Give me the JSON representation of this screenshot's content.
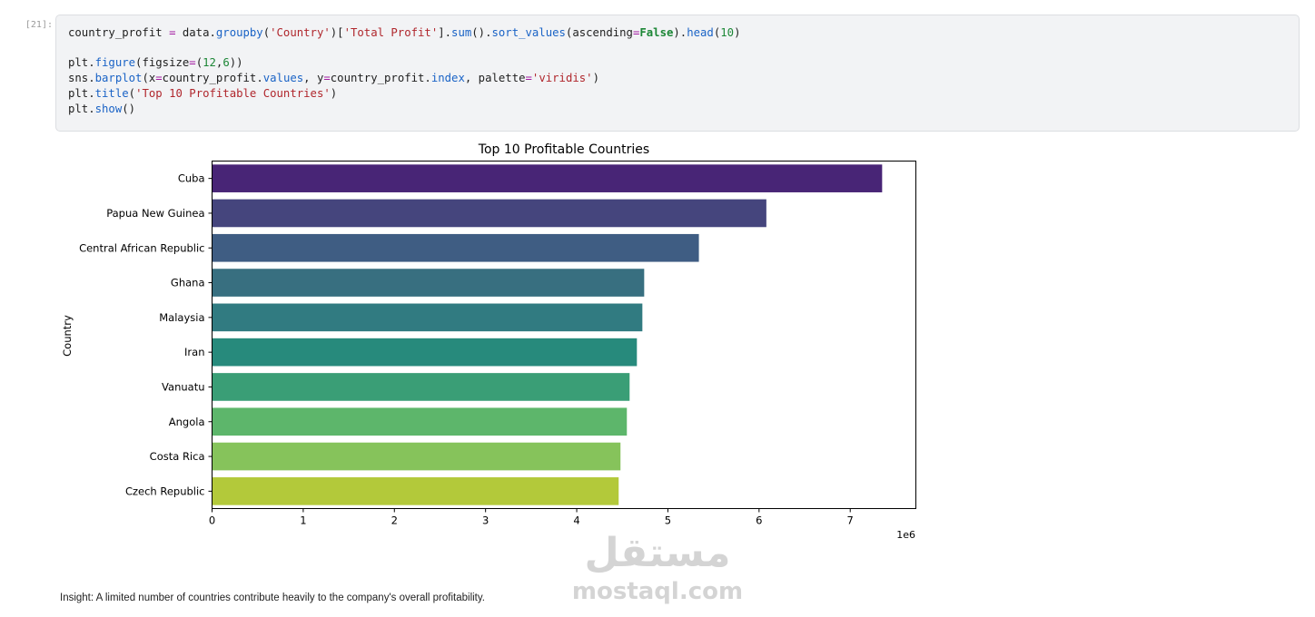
{
  "cell": {
    "prompt": "[21]:",
    "code_lines": [
      [
        {
          "t": "country_profit "
        },
        {
          "t": "=",
          "c": "op"
        },
        {
          "t": " data."
        },
        {
          "t": "groupby",
          "c": "fn"
        },
        {
          "t": "("
        },
        {
          "t": "'Country'",
          "c": "str"
        },
        {
          "t": ")["
        },
        {
          "t": "'Total Profit'",
          "c": "str"
        },
        {
          "t": "]."
        },
        {
          "t": "sum",
          "c": "fn"
        },
        {
          "t": "()."
        },
        {
          "t": "sort_values",
          "c": "fn"
        },
        {
          "t": "(ascending"
        },
        {
          "t": "=",
          "c": "op"
        },
        {
          "t": "False",
          "c": "kw"
        },
        {
          "t": ")."
        },
        {
          "t": "head",
          "c": "fn"
        },
        {
          "t": "("
        },
        {
          "t": "10",
          "c": "num"
        },
        {
          "t": ")"
        }
      ],
      [],
      [
        {
          "t": "plt."
        },
        {
          "t": "figure",
          "c": "fn"
        },
        {
          "t": "(figsize"
        },
        {
          "t": "=",
          "c": "op"
        },
        {
          "t": "("
        },
        {
          "t": "12",
          "c": "num"
        },
        {
          "t": ","
        },
        {
          "t": "6",
          "c": "num"
        },
        {
          "t": "))"
        }
      ],
      [
        {
          "t": "sns."
        },
        {
          "t": "barplot",
          "c": "fn"
        },
        {
          "t": "(x"
        },
        {
          "t": "=",
          "c": "op"
        },
        {
          "t": "country_profit."
        },
        {
          "t": "values",
          "c": "fn"
        },
        {
          "t": ", y"
        },
        {
          "t": "=",
          "c": "op"
        },
        {
          "t": "country_profit."
        },
        {
          "t": "index",
          "c": "fn"
        },
        {
          "t": ", palette"
        },
        {
          "t": "=",
          "c": "op"
        },
        {
          "t": "'viridis'",
          "c": "str"
        },
        {
          "t": ")"
        }
      ],
      [
        {
          "t": "plt."
        },
        {
          "t": "title",
          "c": "fn"
        },
        {
          "t": "("
        },
        {
          "t": "'Top 10 Profitable Countries'",
          "c": "str"
        },
        {
          "t": ")"
        }
      ],
      [
        {
          "t": "plt."
        },
        {
          "t": "show",
          "c": "fn"
        },
        {
          "t": "()"
        }
      ]
    ]
  },
  "chart_data": {
    "type": "bar",
    "orientation": "horizontal",
    "title": "Top 10 Profitable Countries",
    "xlabel": "",
    "ylabel": "Country",
    "x_offset_text": "1e6",
    "xlim": [
      0,
      7.72
    ],
    "x_ticks": [
      0,
      1,
      2,
      3,
      4,
      5,
      6,
      7
    ],
    "grid": false,
    "legend": "none",
    "categories": [
      "Cuba",
      "Papua New Guinea",
      "Central African Republic",
      "Ghana",
      "Malaysia",
      "Iran",
      "Vanuatu",
      "Angola",
      "Costa Rica",
      "Czech Republic"
    ],
    "values": [
      7.35,
      6.08,
      5.34,
      4.74,
      4.72,
      4.66,
      4.58,
      4.55,
      4.48,
      4.46
    ],
    "colors": [
      "#482576",
      "#45457d",
      "#3f5d83",
      "#386f80",
      "#317b81",
      "#278a7c",
      "#3a9e76",
      "#5db66b",
      "#86c35b",
      "#b3c93a"
    ]
  },
  "insight": "Insight: A limited number of countries contribute heavily to the company's overall profitability.",
  "watermark": {
    "arabic": "مستقل",
    "latin": "mostaql.com"
  }
}
